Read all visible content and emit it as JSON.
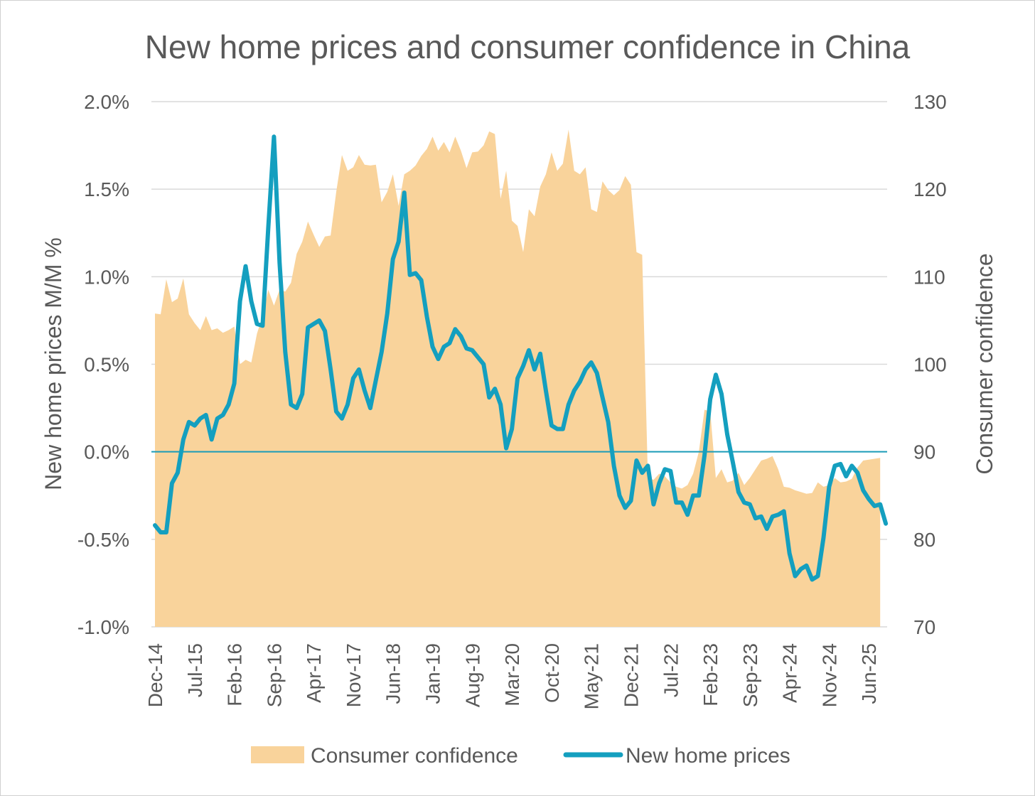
{
  "chart_data": {
    "type": "area+line",
    "title": "New home prices and consumer confidence in China",
    "ylabel_left": "New home prices M/M %",
    "ylabel_right": "Consumer confidence",
    "ylim_left": [
      -1.0,
      2.0
    ],
    "ylim_right": [
      70,
      130
    ],
    "yticks_left": [
      "-1.0%",
      "-0.5%",
      "0.0%",
      "0.5%",
      "1.0%",
      "1.5%",
      "2.0%"
    ],
    "yticks_left_values": [
      -1.0,
      -0.5,
      0.0,
      0.5,
      1.0,
      1.5,
      2.0
    ],
    "yticks_right": [
      "70",
      "80",
      "90",
      "100",
      "110",
      "120",
      "130"
    ],
    "yticks_right_values": [
      70,
      80,
      90,
      100,
      110,
      120,
      130
    ],
    "x_start": "Dec-14",
    "x_ticks": [
      "Dec-14",
      "Jul-15",
      "Feb-16",
      "Sep-16",
      "Apr-17",
      "Nov-17",
      "Jun-18",
      "Jan-19",
      "Aug-19",
      "Mar-20",
      "Oct-20",
      "May-21",
      "Dec-21",
      "Jul-22",
      "Feb-23",
      "Sep-23",
      "Apr-24",
      "Nov-24",
      "Jun-25"
    ],
    "x_tick_step_months": 7,
    "grid": true,
    "legend_position": "bottom",
    "series": [
      {
        "name": "Consumer confidence",
        "type": "area",
        "axis": "right",
        "color": "#F9D39B",
        "values": [
          105.8,
          105.7,
          109.7,
          107.1,
          107.5,
          109.8,
          105.7,
          104.7,
          103.9,
          105.5,
          103.9,
          104.1,
          103.6,
          103.9,
          104.3,
          100.0,
          100.5,
          100.2,
          103.5,
          105.5,
          108.5,
          106.7,
          108.5,
          108.3,
          109.3,
          112.6,
          114.0,
          116.3,
          114.8,
          113.4,
          114.6,
          114.7,
          119.7,
          123.9,
          122.1,
          122.5,
          123.9,
          122.8,
          122.7,
          122.8,
          118.5,
          119.7,
          121.7,
          118.1,
          121.7,
          122.1,
          122.7,
          123.8,
          124.6,
          126.0,
          124.4,
          125.4,
          124.2,
          126.0,
          124.4,
          122.4,
          124.2,
          124.3,
          125.0,
          126.6,
          126.3,
          118.9,
          122.1,
          116.4,
          115.8,
          112.8,
          117.7,
          116.9,
          120.3,
          121.7,
          124.2,
          122.1,
          122.9,
          126.8,
          122.1,
          121.7,
          122.5,
          117.7,
          117.4,
          120.9,
          119.9,
          119.3,
          119.9,
          121.5,
          120.5,
          112.8,
          112.5,
          87.0,
          86.8,
          87.5,
          87.2,
          86.5,
          86.0,
          85.8,
          86.2,
          87.5,
          90.0,
          94.8,
          94.6,
          87.0,
          88.0,
          86.5,
          86.7,
          87.6,
          86.2,
          87.0,
          88.0,
          89.0,
          89.2,
          89.5,
          88.0,
          86.0,
          85.9,
          85.6,
          85.4,
          85.2,
          85.3,
          86.5,
          86.0,
          86.2,
          87.0,
          86.5,
          86.6,
          86.9,
          88.2,
          89.0,
          89.1,
          89.2,
          89.3
        ]
      },
      {
        "name": "New home prices",
        "type": "line",
        "axis": "left",
        "color": "#149FBF",
        "values": [
          -0.42,
          -0.46,
          -0.46,
          -0.18,
          -0.12,
          0.07,
          0.17,
          0.15,
          0.19,
          0.21,
          0.07,
          0.19,
          0.21,
          0.27,
          0.39,
          0.86,
          1.06,
          0.86,
          0.73,
          0.72,
          1.28,
          1.8,
          1.08,
          0.57,
          0.27,
          0.25,
          0.33,
          0.71,
          0.73,
          0.75,
          0.69,
          0.47,
          0.23,
          0.19,
          0.27,
          0.42,
          0.47,
          0.35,
          0.25,
          0.41,
          0.57,
          0.79,
          1.1,
          1.2,
          1.48,
          1.01,
          1.02,
          0.98,
          0.77,
          0.6,
          0.53,
          0.6,
          0.62,
          0.7,
          0.66,
          0.59,
          0.58,
          0.54,
          0.5,
          0.31,
          0.36,
          0.27,
          0.02,
          0.13,
          0.42,
          0.49,
          0.58,
          0.47,
          0.56,
          0.35,
          0.15,
          0.13,
          0.13,
          0.27,
          0.35,
          0.4,
          0.47,
          0.51,
          0.45,
          0.31,
          0.17,
          -0.08,
          -0.25,
          -0.32,
          -0.28,
          -0.05,
          -0.12,
          -0.08,
          -0.3,
          -0.18,
          -0.1,
          -0.11,
          -0.29,
          -0.29,
          -0.36,
          -0.25,
          -0.25,
          -0.02,
          0.3,
          0.44,
          0.33,
          0.1,
          -0.06,
          -0.23,
          -0.29,
          -0.3,
          -0.38,
          -0.37,
          -0.44,
          -0.37,
          -0.36,
          -0.34,
          -0.58,
          -0.71,
          -0.67,
          -0.65,
          -0.73,
          -0.71,
          -0.49,
          -0.2,
          -0.08,
          -0.07,
          -0.14,
          -0.08,
          -0.12,
          -0.22,
          -0.27,
          -0.31,
          -0.3,
          -0.41
        ]
      }
    ],
    "zero_line_color": "#1A9BB8",
    "grid_color": "#D9D9D9"
  }
}
